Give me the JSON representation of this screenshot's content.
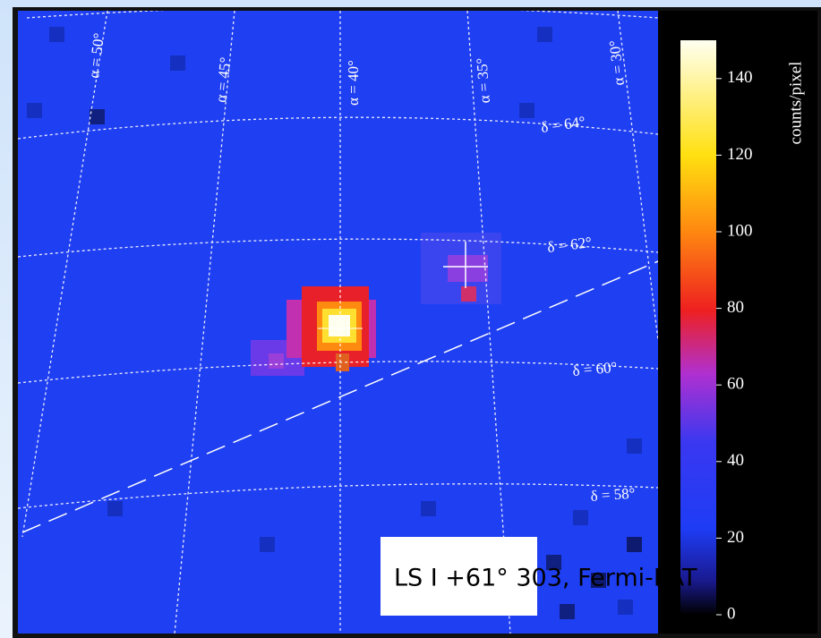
{
  "sky_map": {
    "ra_labels": [
      "α = 50°",
      "α = 45°",
      "α = 40°",
      "α = 35°",
      "α = 30°"
    ],
    "dec_labels": [
      "δ = 64°",
      "δ = 62°",
      "δ = 60°",
      "δ = 58°"
    ]
  },
  "colorbar": {
    "label": "counts/pixel",
    "lim": [
      0,
      150
    ],
    "ticks": [
      0,
      20,
      40,
      60,
      80,
      100,
      120,
      140
    ]
  },
  "caption": "LS I +61° 303, Fermi-LAT"
}
